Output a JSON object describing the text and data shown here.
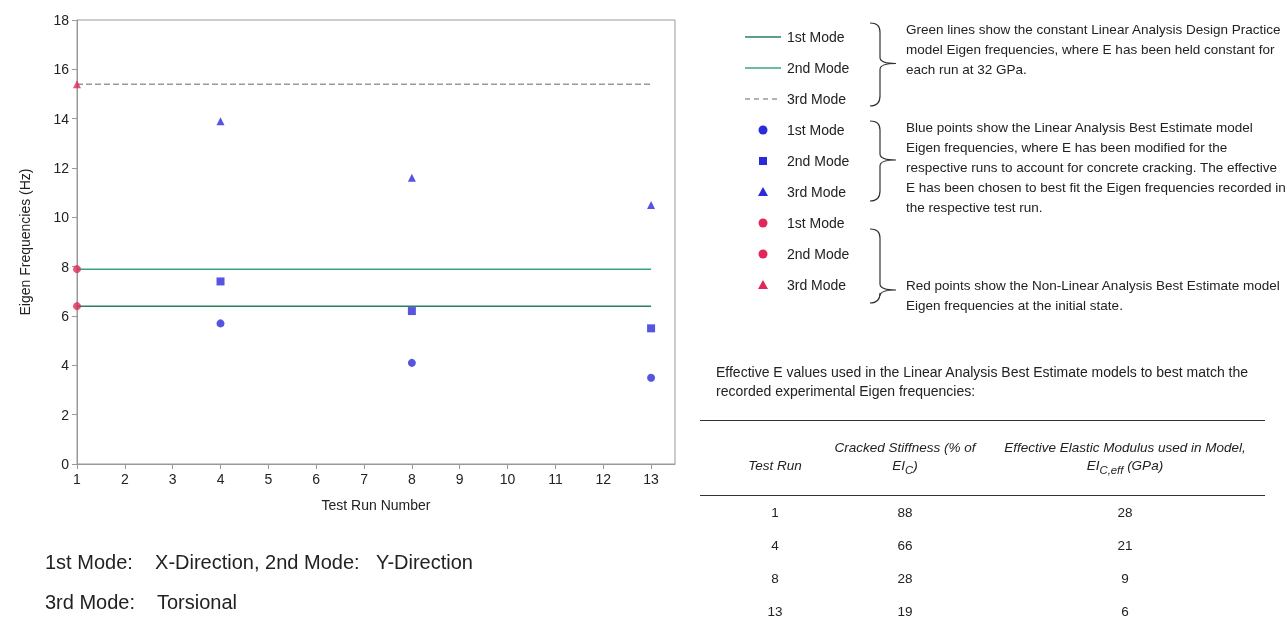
{
  "chart_data": [
    {
      "type": "scatter",
      "xlabel": "Test Run Number",
      "ylabel": "Eigen Frequencies (Hz)",
      "xlim": [
        1,
        13.5
      ],
      "xticks": [
        1,
        2,
        3,
        4,
        5,
        6,
        7,
        8,
        9,
        10,
        11,
        12,
        13
      ],
      "ylim": [
        0,
        18
      ],
      "yticks": [
        0,
        2,
        4,
        6,
        8,
        10,
        12,
        14,
        16,
        18
      ],
      "grid": false,
      "legend": "right",
      "series": [
        {
          "name": "1st Mode",
          "type": "line",
          "color": "#2a7f62",
          "line_style": "solid",
          "marker": "none",
          "x": [
            1,
            13
          ],
          "values": [
            6.4,
            6.4
          ]
        },
        {
          "name": "2nd Mode",
          "type": "line",
          "color": "#3aa57c",
          "line_style": "solid",
          "marker": "none",
          "x": [
            1,
            13
          ],
          "values": [
            7.9,
            7.9
          ]
        },
        {
          "name": "3rd Mode",
          "type": "line",
          "color": "#9a9a9a",
          "line_style": "dashed",
          "marker": "none",
          "x": [
            1,
            13
          ],
          "values": [
            15.4,
            15.4
          ]
        },
        {
          "name": "1st Mode",
          "type": "scatter",
          "color": "#2b2bd9",
          "marker": "circle",
          "x": [
            4,
            8,
            13
          ],
          "values": [
            5.7,
            4.1,
            3.5
          ]
        },
        {
          "name": "2nd Mode",
          "type": "scatter",
          "color": "#2b2bd9",
          "marker": "square",
          "x": [
            4,
            8,
            13
          ],
          "values": [
            7.4,
            6.2,
            5.5
          ]
        },
        {
          "name": "3rd Mode",
          "type": "scatter",
          "color": "#2b2bd9",
          "marker": "triangle",
          "x": [
            4,
            8,
            13
          ],
          "values": [
            13.9,
            11.6,
            10.5
          ]
        },
        {
          "name": "1st Mode",
          "type": "scatter",
          "color": "#e0285a",
          "marker": "circle",
          "x": [
            1
          ],
          "values": [
            6.4
          ]
        },
        {
          "name": "2nd Mode",
          "type": "scatter",
          "color": "#e0285a",
          "marker": "circle",
          "x": [
            1
          ],
          "values": [
            7.9
          ]
        },
        {
          "name": "3rd Mode",
          "type": "scatter",
          "color": "#e0285a",
          "marker": "triangle",
          "x": [
            1
          ],
          "values": [
            15.4
          ]
        }
      ],
      "annotations": [
        "Green lines show the constant Linear Analysis Design Practice model Eigen frequencies, where E has been held constant for each run at 32 GPa.",
        "Blue points show the Linear Analysis Best Estimate model Eigen frequencies, where E has been modified for the respective runs to account for concrete cracking. The effective E has been chosen to best fit the Eigen frequencies recorded in the respective test run.",
        "Red points show the Non-Linear Analysis Best Estimate model Eigen frequencies at the initial state.",
        "1st Mode:    X-Direction, 2nd Mode:   Y-Direction",
        "3rd Mode:    Torsional"
      ]
    },
    {
      "type": "other",
      "title": "Effective E values used in the Linear Analysis Best Estimate models to best match the recorded experimental Eigen frequencies:",
      "annotations": [
        "Test Run",
        "Cracked Stiffness (% of EI$_{C}$)",
        "Effective Elastic Modulus used in Model,  EI$_{C,eff}$ (GPa)",
        "1",
        "88",
        "28",
        "4",
        "66",
        "21",
        "8",
        "28",
        "9",
        "13",
        "19",
        "6"
      ]
    }
  ]
}
